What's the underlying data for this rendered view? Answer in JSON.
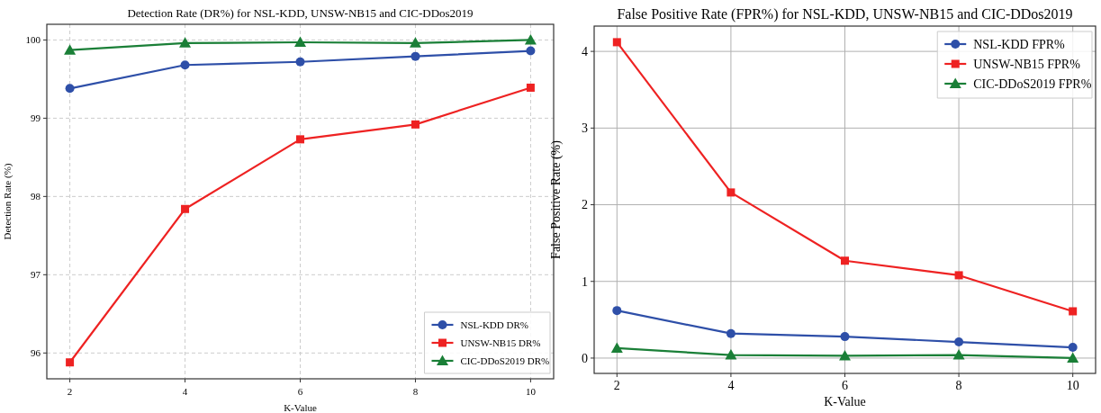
{
  "chart_data": [
    {
      "type": "line",
      "title": "Detection Rate (DR%) for NSL-KDD, UNSW-NB15 and CIC-DDos2019",
      "xlabel": "K-Value",
      "ylabel": "Detection Rate (%)",
      "x": [
        2,
        4,
        6,
        8,
        10
      ],
      "xlim": [
        1.6,
        10.4
      ],
      "xticks": [
        2,
        4,
        6,
        8,
        10
      ],
      "ylim": [
        95.67,
        100.2
      ],
      "yticks": [
        96,
        97,
        98,
        99,
        100
      ],
      "grid": true,
      "legend": "bottom right",
      "series": [
        {
          "name": "NSL-KDD DR%",
          "color": "#2e4fa8",
          "marker": "circle",
          "values": [
            99.38,
            99.68,
            99.72,
            99.79,
            99.86
          ]
        },
        {
          "name": "UNSW-NB15 DR%",
          "color": "#ee2222",
          "marker": "square",
          "values": [
            95.88,
            97.84,
            98.73,
            98.92,
            99.39
          ]
        },
        {
          "name": "CIC-DDoS2019 DR%",
          "color": "#1a7f37",
          "marker": "triangle",
          "values": [
            99.87,
            99.96,
            99.97,
            99.96,
            100.0
          ]
        }
      ]
    },
    {
      "type": "line",
      "title": "False Positive Rate (FPR%) for NSL-KDD, UNSW-NB15 and CIC-DDos2019",
      "xlabel": "K-Value",
      "ylabel": "False Positive Rate (%)",
      "x": [
        2,
        4,
        6,
        8,
        10
      ],
      "xlim": [
        1.6,
        10.4
      ],
      "xticks": [
        2,
        4,
        6,
        8,
        10
      ],
      "ylim": [
        -0.2,
        4.33
      ],
      "yticks": [
        0,
        1,
        2,
        3,
        4
      ],
      "grid": true,
      "legend": "top right",
      "series": [
        {
          "name": "NSL-KDD FPR%",
          "color": "#2e4fa8",
          "marker": "circle",
          "values": [
            0.62,
            0.32,
            0.28,
            0.21,
            0.14
          ]
        },
        {
          "name": "UNSW-NB15 FPR%",
          "color": "#ee2222",
          "marker": "square",
          "values": [
            4.12,
            2.16,
            1.27,
            1.08,
            0.61
          ]
        },
        {
          "name": "CIC-DDoS2019 FPR%",
          "color": "#1a7f37",
          "marker": "triangle",
          "values": [
            0.13,
            0.04,
            0.03,
            0.04,
            0.0
          ]
        }
      ]
    }
  ]
}
